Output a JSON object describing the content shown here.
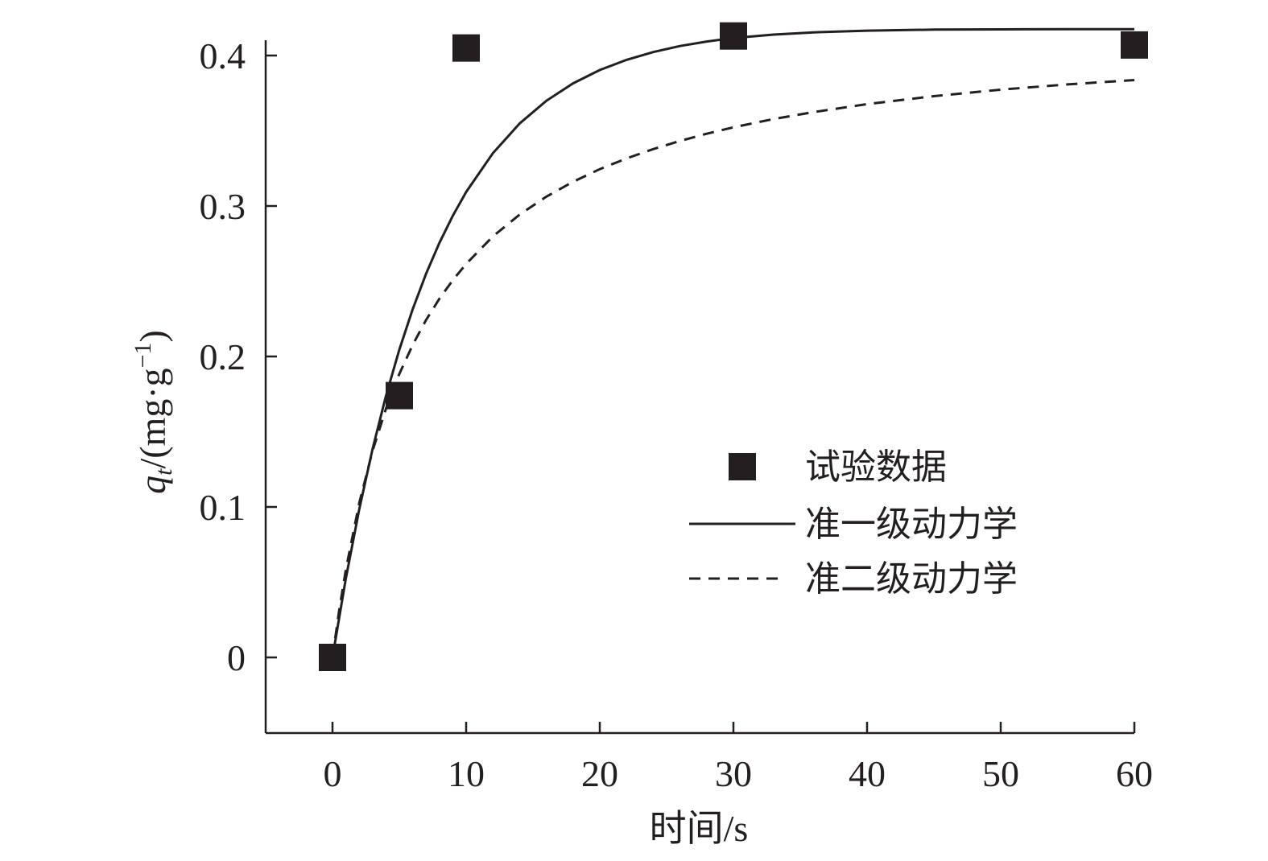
{
  "chart_data": {
    "type": "scatter",
    "title": "",
    "xlabel": "时间/s",
    "ylabel_parts": {
      "var": "q",
      "sub": "t",
      "unit_open": "/(mg·g",
      "sup": "−1",
      "unit_close": ")"
    },
    "xlim": [
      -5,
      60
    ],
    "ylim": [
      -0.05,
      0.43
    ],
    "x_ticks": [
      0,
      10,
      20,
      30,
      40,
      50,
      60
    ],
    "y_ticks": [
      0,
      0.1,
      0.2,
      0.3,
      0.4
    ],
    "y_tick_labels": [
      "0",
      "0.1",
      "0.2",
      "0.3",
      "0.4"
    ],
    "legend_position": "right-center",
    "series": [
      {
        "name": "试验数据",
        "kind": "markers",
        "marker": "square",
        "x": [
          0,
          5,
          10,
          30,
          60
        ],
        "y": [
          0,
          0.174,
          0.405,
          0.413,
          0.407
        ]
      },
      {
        "name": "准一级动力学",
        "kind": "line",
        "style": "solid",
        "x": [
          0,
          1,
          2,
          3,
          4,
          5,
          6,
          7,
          8,
          9,
          10,
          12,
          14,
          16,
          18,
          20,
          22,
          24,
          26,
          28,
          30,
          33,
          36,
          40,
          45,
          50,
          55,
          60
        ],
        "y": [
          0,
          0.0525,
          0.0984,
          0.1386,
          0.1738,
          0.2045,
          0.2314,
          0.2549,
          0.2755,
          0.2935,
          0.3093,
          0.3351,
          0.3548,
          0.3699,
          0.3815,
          0.3904,
          0.3971,
          0.4023,
          0.4063,
          0.4093,
          0.4116,
          0.4139,
          0.4154,
          0.4165,
          0.4172,
          0.4174,
          0.4175,
          0.4175
        ]
      },
      {
        "name": "准二级动力学",
        "kind": "line",
        "style": "dashed",
        "x": [
          0,
          0.5,
          1,
          2,
          3,
          4,
          5,
          6,
          7,
          8,
          9,
          10,
          12,
          14,
          16,
          18,
          20,
          22,
          24,
          26,
          28,
          30,
          33,
          36,
          40,
          45,
          50,
          55,
          60
        ],
        "y": [
          0,
          0.0313,
          0.0583,
          0.1025,
          0.1373,
          0.1653,
          0.1884,
          0.2077,
          0.2242,
          0.2384,
          0.2507,
          0.2615,
          0.2798,
          0.2943,
          0.3062,
          0.3161,
          0.3245,
          0.3316,
          0.3378,
          0.3432,
          0.348,
          0.3523,
          0.3578,
          0.3624,
          0.3677,
          0.373,
          0.3773,
          0.3808,
          0.3837
        ]
      }
    ]
  }
}
